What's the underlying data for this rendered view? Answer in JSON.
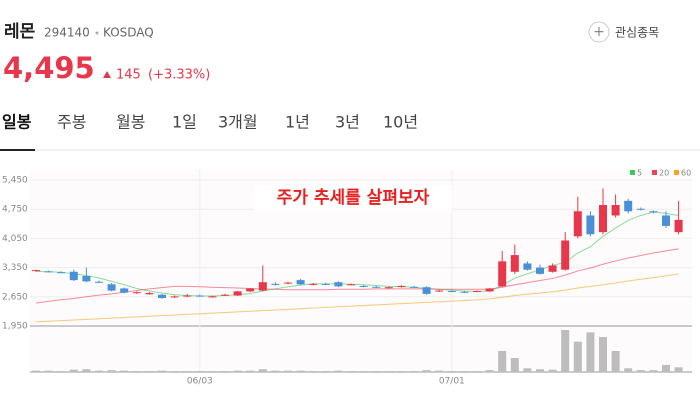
{
  "header": {
    "name": "레몬",
    "code": "294140",
    "market": "KOSDAQ",
    "price": "4,495",
    "change": "145",
    "change_pct": "(+3.33%)",
    "watch_button": "관심종목"
  },
  "tabs": [
    "일봉",
    "주봉",
    "월봉",
    "1일",
    "3개월",
    "1년",
    "3년",
    "10년"
  ],
  "chart_data": {
    "type": "candlestick",
    "annotation": "주가 추세를 살펴보자",
    "ylim": [
      1950,
      5600
    ],
    "yticks": [
      {
        "value": 1950,
        "label": "1,950"
      },
      {
        "value": 2650,
        "label": "2,650"
      },
      {
        "value": 3350,
        "label": "3,350"
      },
      {
        "value": 4050,
        "label": "4,050"
      },
      {
        "value": 4750,
        "label": "4,750"
      },
      {
        "value": 5450,
        "label": "5,450"
      }
    ],
    "xticks": [
      {
        "value": 13,
        "label": "06/03"
      },
      {
        "value": 33,
        "label": "07/01"
      }
    ],
    "up_color": "#e8374a",
    "down_color": "#4a90d9",
    "volume_color": "#bdbdbd",
    "open": [
      3270,
      3260,
      3240,
      3250,
      3150,
      3010,
      2950,
      2850,
      2740,
      2710,
      2700,
      2640,
      2660,
      2680,
      2650,
      2690,
      2680,
      2780,
      2800,
      2960,
      2970,
      3050,
      2950,
      2960,
      3000,
      2940,
      2910,
      2890,
      2870,
      2890,
      2890,
      2880,
      2790,
      2790,
      2770,
      2770,
      2780,
      2900,
      3250,
      3450,
      3350,
      3250,
      3300,
      4100,
      4600,
      4200,
      4600,
      4950,
      4760,
      4700,
      4600,
      4200
    ],
    "high": [
      3300,
      3280,
      3260,
      3300,
      3350,
      3040,
      2980,
      2870,
      2780,
      2760,
      2720,
      2680,
      2720,
      2700,
      2680,
      2720,
      2790,
      2860,
      3400,
      3000,
      3010,
      3080,
      2980,
      2990,
      3020,
      2970,
      2930,
      2910,
      2900,
      2930,
      2910,
      2900,
      2820,
      2810,
      2790,
      2800,
      2860,
      3750,
      3900,
      3500,
      3420,
      3450,
      4200,
      5050,
      4700,
      5250,
      5100,
      5000,
      4790,
      4720,
      4700,
      4950
    ],
    "low": [
      3250,
      3240,
      3220,
      3030,
      3000,
      2980,
      2780,
      2730,
      2720,
      2700,
      2600,
      2620,
      2640,
      2650,
      2630,
      2670,
      2670,
      2760,
      2780,
      2920,
      2950,
      2930,
      2920,
      2930,
      2880,
      2920,
      2880,
      2860,
      2850,
      2870,
      2860,
      2700,
      2770,
      2760,
      2740,
      2760,
      2770,
      2880,
      3200,
      3280,
      3180,
      3230,
      3280,
      4050,
      4100,
      4150,
      4550,
      4650,
      4720,
      4650,
      4300,
      4150
    ],
    "close": [
      3290,
      3250,
      3230,
      3050,
      3020,
      3000,
      2800,
      2750,
      2760,
      2740,
      2620,
      2660,
      2680,
      2670,
      2660,
      2700,
      2780,
      2850,
      3000,
      2950,
      2990,
      2950,
      2960,
      2950,
      2900,
      2950,
      2900,
      2880,
      2880,
      2910,
      2880,
      2720,
      2800,
      2780,
      2760,
      2790,
      2850,
      3500,
      3650,
      3300,
      3200,
      3400,
      4000,
      4700,
      4150,
      4850,
      4850,
      4700,
      4750,
      4690,
      4350,
      4495
    ],
    "volume": [
      3,
      3,
      2,
      5,
      6,
      3,
      4,
      3,
      2,
      2,
      3,
      2,
      2,
      2,
      2,
      2,
      3,
      3,
      6,
      3,
      3,
      3,
      2,
      2,
      3,
      2,
      2,
      2,
      2,
      2,
      2,
      4,
      3,
      2,
      2,
      2,
      4,
      45,
      30,
      8,
      6,
      5,
      90,
      65,
      85,
      75,
      45,
      8,
      4,
      4,
      15,
      10
    ],
    "series": [
      {
        "name": "5",
        "color": "#3cc85a",
        "values": [
          3260,
          3250,
          3240,
          3200,
          3160,
          3100,
          3020,
          2940,
          2850,
          2790,
          2740,
          2700,
          2680,
          2670,
          2670,
          2680,
          2700,
          2730,
          2790,
          2840,
          2890,
          2930,
          2960,
          2960,
          2960,
          2950,
          2940,
          2920,
          2900,
          2890,
          2880,
          2850,
          2830,
          2810,
          2790,
          2780,
          2790,
          2920,
          3100,
          3200,
          3300,
          3400,
          3480,
          3700,
          3850,
          4100,
          4300,
          4480,
          4600,
          4680,
          4650,
          4600
        ]
      },
      {
        "name": "20",
        "color": "#f0405a",
        "values": [
          2500,
          2540,
          2580,
          2610,
          2650,
          2690,
          2720,
          2760,
          2800,
          2840,
          2870,
          2900,
          2900,
          2890,
          2880,
          2870,
          2860,
          2850,
          2840,
          2830,
          2820,
          2820,
          2820,
          2820,
          2830,
          2830,
          2830,
          2840,
          2840,
          2840,
          2840,
          2840,
          2830,
          2830,
          2830,
          2830,
          2830,
          2880,
          2940,
          2990,
          3040,
          3090,
          3170,
          3270,
          3340,
          3430,
          3510,
          3580,
          3640,
          3700,
          3750,
          3800
        ]
      },
      {
        "name": "60",
        "color": "#f5a623",
        "values": [
          2050,
          2065,
          2080,
          2095,
          2110,
          2125,
          2140,
          2155,
          2170,
          2185,
          2200,
          2215,
          2230,
          2245,
          2260,
          2275,
          2290,
          2305,
          2320,
          2335,
          2350,
          2365,
          2380,
          2395,
          2410,
          2425,
          2440,
          2455,
          2470,
          2485,
          2500,
          2515,
          2530,
          2545,
          2560,
          2575,
          2600,
          2640,
          2680,
          2710,
          2740,
          2770,
          2810,
          2860,
          2900,
          2940,
          2980,
          3030,
          3070,
          3110,
          3150,
          3200
        ]
      }
    ]
  }
}
